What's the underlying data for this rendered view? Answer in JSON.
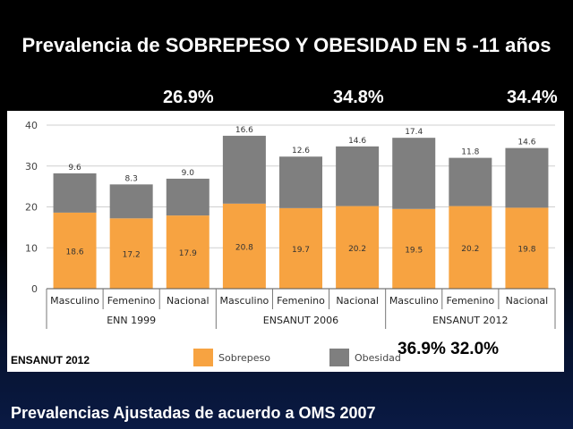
{
  "slide": {
    "title": "Prevalencia de SOBREPESO Y OBESIDAD EN 5 -11 años",
    "totals": [
      "26.9%",
      "34.8%",
      "34.4%"
    ],
    "source_note": "ENSANUT 2012",
    "extra_values": "36.9% 32.0%",
    "footer": "Prevalencias Ajustadas de acuerdo a OMS 2007"
  },
  "chart_data": {
    "type": "bar",
    "stacked": true,
    "ylim": [
      0,
      40
    ],
    "yticks": [
      "0",
      "10",
      "20",
      "30",
      "40"
    ],
    "categories": [
      "Masculino",
      "Femenino",
      "Nacional",
      "Masculino",
      "Femenino",
      "Nacional",
      "Masculino",
      "Femenino",
      "Nacional"
    ],
    "groups": [
      {
        "label": "ENN 1999",
        "start": 0,
        "count": 3
      },
      {
        "label": "ENSANUT 2006",
        "start": 3,
        "count": 3
      },
      {
        "label": "ENSANUT 2012",
        "start": 6,
        "count": 3
      }
    ],
    "series": [
      {
        "name": "Sobrepeso",
        "color": "#f7a341",
        "values": [
          18.6,
          17.2,
          17.9,
          20.8,
          19.7,
          20.2,
          19.5,
          20.2,
          19.8
        ],
        "labels": [
          "18.6",
          "17.2",
          "17.9",
          "20.8",
          "19.7",
          "20.2",
          "19.5",
          "20.2",
          "19.8"
        ]
      },
      {
        "name": "Obesidad",
        "color": "#7f7f7f",
        "values": [
          9.6,
          8.3,
          9.0,
          16.6,
          12.6,
          14.6,
          17.4,
          11.8,
          14.6
        ],
        "labels": [
          "9.6",
          "8.3",
          "9.0",
          "16.6",
          "12.6",
          "14.6",
          "17.4",
          "11.8",
          "14.6"
        ]
      }
    ],
    "grid": true,
    "legend_position": "bottom"
  }
}
